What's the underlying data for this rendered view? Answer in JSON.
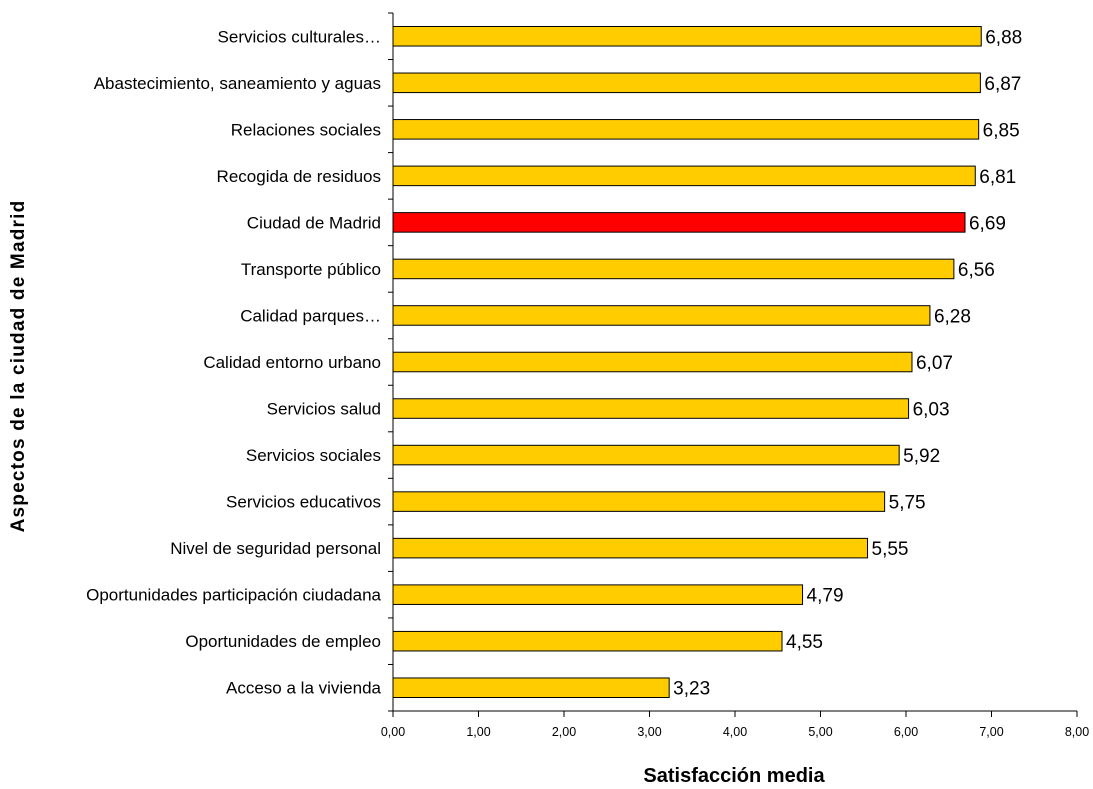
{
  "chart_data": {
    "type": "bar",
    "orientation": "horizontal",
    "xlabel": "Satisfacción media",
    "ylabel": "Aspectos de la ciudad de Madrid",
    "xlim": [
      0,
      8
    ],
    "x_ticks": [
      "0,00",
      "1,00",
      "2,00",
      "3,00",
      "4,00",
      "5,00",
      "6,00",
      "7,00",
      "8,00"
    ],
    "grid": false,
    "legend": "none",
    "colors": {
      "default": "#FFCC00",
      "highlight": "#FF0000",
      "outline": "#000000"
    },
    "highlight_category": "Ciudad de Madrid",
    "categories": [
      "Servicios culturales…",
      "Abastecimiento, saneamiento y aguas",
      "Relaciones sociales",
      "Recogida de residuos",
      "Ciudad de Madrid",
      "Transporte público",
      "Calidad parques…",
      "Calidad entorno urbano",
      "Servicios salud",
      "Servicios sociales",
      "Servicios educativos",
      "Nivel de seguridad personal",
      "Oportunidades participación ciudadana",
      "Oportunidades de empleo",
      "Acceso a la vivienda"
    ],
    "values": [
      6.88,
      6.87,
      6.85,
      6.81,
      6.69,
      6.56,
      6.28,
      6.07,
      6.03,
      5.92,
      5.75,
      5.55,
      4.79,
      4.55,
      3.23
    ],
    "value_labels": [
      "6,88",
      "6,87",
      "6,85",
      "6,81",
      "6,69",
      "6,56",
      "6,28",
      "6,07",
      "6,03",
      "5,92",
      "5,75",
      "5,55",
      "4,79",
      "4,55",
      "3,23"
    ]
  }
}
